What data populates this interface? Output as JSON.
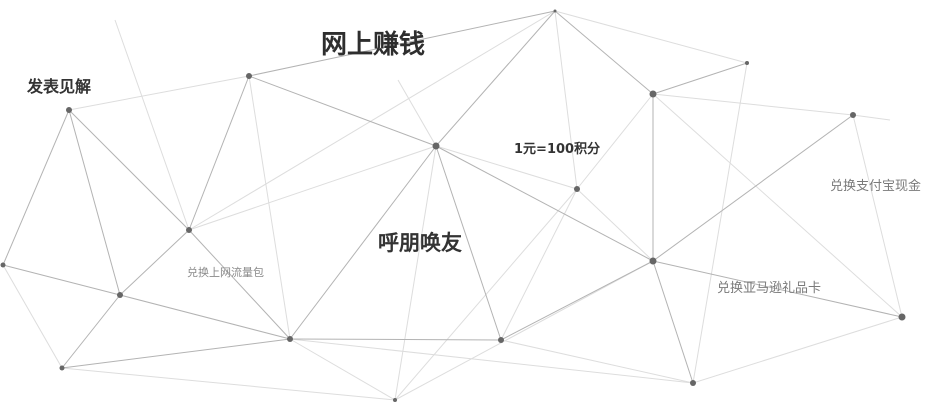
{
  "diagram": {
    "labels": {
      "publish_insights": "发表见解",
      "earn_online": "网上赚钱",
      "points_rate": "1元=100积分",
      "invite_friends": "呼朋唤友",
      "redeem_data": "兑换上网流量包",
      "redeem_amazon": "兑换亚马逊礼品卡",
      "redeem_alipay": "兑换支付宝现金"
    },
    "colors": {
      "node": "#666666",
      "edge_strong": "#b3b3b3",
      "edge_light": "#dddddd",
      "text_dark": "#333333",
      "text_light": "#7a7a7a"
    }
  }
}
